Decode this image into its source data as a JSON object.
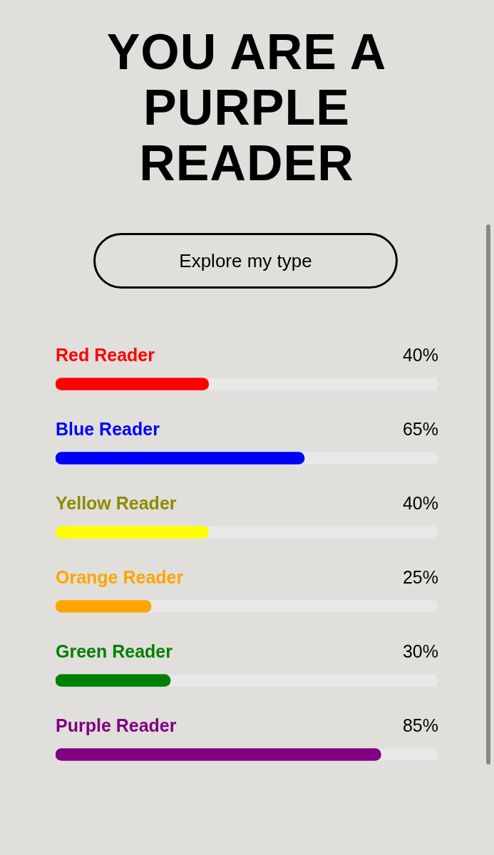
{
  "chart_data": {
    "type": "bar",
    "orientation": "horizontal",
    "title": "YOU ARE A PURPLE READER",
    "annotations": [
      "Explore my type"
    ],
    "categories": [
      "Red Reader",
      "Blue Reader",
      "Yellow Reader",
      "Orange Reader",
      "Green Reader",
      "Purple Reader"
    ],
    "values": [
      40,
      65,
      40,
      25,
      30,
      85
    ],
    "value_labels": [
      "40%",
      "65%",
      "40%",
      "25%",
      "30%",
      "85%"
    ],
    "colors": [
      "#ff0000",
      "#0000ff",
      "#ffff00",
      "#ffa500",
      "#008000",
      "#800080"
    ],
    "xlim": [
      0,
      100
    ],
    "tick_labels": false,
    "legend": false
  }
}
